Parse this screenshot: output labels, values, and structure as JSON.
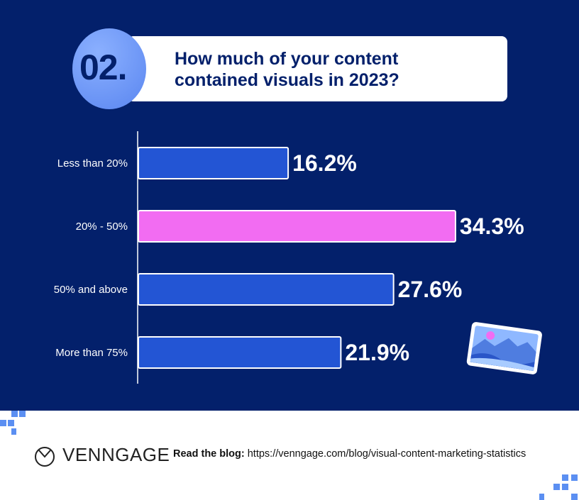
{
  "header": {
    "number": "02.",
    "question": "How much of your content contained visuals in 2023?"
  },
  "chart_data": {
    "type": "bar",
    "orientation": "horizontal",
    "categories": [
      "Less than 20%",
      "20% - 50%",
      "50% and above",
      "More than 75%"
    ],
    "values": [
      16.2,
      34.3,
      27.6,
      21.9
    ],
    "labels": [
      "16.2%",
      "34.3%",
      "27.6%",
      "21.9%"
    ],
    "colors": [
      "#2355d4",
      "#f26cf2",
      "#2355d4",
      "#2355d4"
    ],
    "xlim": [
      0,
      45
    ],
    "grid": false
  },
  "footer": {
    "brand": "VENNGAGE",
    "blog_label": "Read the blog:",
    "blog_url": "https://venngage.com/blog/visual-content-marketing-statistics"
  },
  "colors": {
    "background": "#03206b",
    "highlight": "#f26cf2",
    "bar": "#2355d4"
  }
}
